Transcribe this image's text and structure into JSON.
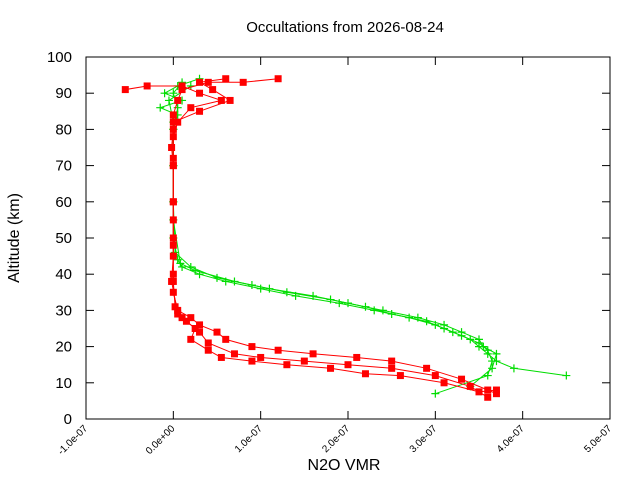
{
  "chart_data": {
    "type": "line",
    "title": "Occultations from 2026-08-24",
    "xlabel": "N2O VMR",
    "ylabel": "Altitude (km)",
    "xlim": [
      -1e-07,
      5e-07
    ],
    "ylim": [
      0,
      100
    ],
    "x_tick_labels": [
      "-1.0e-07",
      "0.0e+00",
      "1.0e-07",
      "2.0e-07",
      "3.0e-07",
      "4.0e-07",
      "5.0e-07"
    ],
    "x_ticks": [
      -1e-07,
      0,
      1e-07,
      2e-07,
      3e-07,
      4e-07,
      5e-07
    ],
    "y_tick_labels": [
      "0",
      "10",
      "20",
      "30",
      "40",
      "50",
      "60",
      "70",
      "80",
      "90",
      "100"
    ],
    "y_ticks": [
      0,
      10,
      20,
      30,
      40,
      50,
      60,
      70,
      80,
      90,
      100
    ],
    "grid": false,
    "legend": "none",
    "series": [
      {
        "color": "#00dd00",
        "marker": "plus",
        "profiles": [
          [
            [
              3e-08,
              94
            ],
            [
              5e-09,
              92
            ],
            [
              -1e-08,
              90
            ],
            [
              1e-08,
              88
            ],
            [
              -1.5e-08,
              86
            ],
            [
              5e-09,
              84
            ],
            [
              0.0,
              80
            ],
            [
              0.0,
              70
            ],
            [
              0.0,
              60
            ],
            [
              0.0,
              50
            ],
            [
              5e-09,
              44
            ],
            [
              1e-08,
              42
            ],
            [
              3e-08,
              40
            ],
            [
              6e-08,
              38
            ],
            [
              1e-07,
              36
            ],
            [
              1.4e-07,
              34
            ],
            [
              1.9e-07,
              32
            ],
            [
              2.3e-07,
              30
            ],
            [
              2.7e-07,
              28
            ],
            [
              3e-07,
              26
            ],
            [
              3.2e-07,
              24
            ],
            [
              3.4e-07,
              22
            ],
            [
              3.5e-07,
              20
            ],
            [
              3.6e-07,
              18
            ],
            [
              3.7e-07,
              16
            ],
            [
              3.9e-07,
              14
            ],
            [
              4.5e-07,
              12
            ]
          ],
          [
            [
              1e-08,
              93
            ],
            [
              0.0,
              90
            ],
            [
              5e-09,
              86
            ],
            [
              0.0,
              80
            ],
            [
              0.0,
              60
            ],
            [
              2e-09,
              46
            ],
            [
              2e-08,
              42
            ],
            [
              5e-08,
              39
            ],
            [
              9e-08,
              37
            ],
            [
              1.3e-07,
              35
            ],
            [
              1.8e-07,
              33
            ],
            [
              2.2e-07,
              31
            ],
            [
              2.5e-07,
              29
            ],
            [
              2.9e-07,
              27
            ],
            [
              3.1e-07,
              25
            ],
            [
              3.3e-07,
              23
            ],
            [
              3.5e-07,
              21
            ],
            [
              3.6e-07,
              19
            ],
            [
              3.65e-07,
              16
            ],
            [
              3.6e-07,
              12
            ],
            [
              3e-07,
              7
            ]
          ],
          [
            [
              2e-08,
              92
            ],
            [
              -5e-09,
              88
            ],
            [
              0.0,
              82
            ],
            [
              0.0,
              70
            ],
            [
              0.0,
              55
            ],
            [
              8e-09,
              43
            ],
            [
              2.5e-08,
              41
            ],
            [
              7e-08,
              38
            ],
            [
              1.1e-07,
              36
            ],
            [
              1.6e-07,
              34
            ],
            [
              2e-07,
              32
            ],
            [
              2.4e-07,
              30
            ],
            [
              2.8e-07,
              28
            ],
            [
              3.1e-07,
              26
            ],
            [
              3.3e-07,
              24
            ],
            [
              3.5e-07,
              22
            ],
            [
              3.55e-07,
              20
            ],
            [
              3.7e-07,
              18
            ],
            [
              3.65e-07,
              14
            ],
            [
              3.4e-07,
              9
            ]
          ]
        ]
      },
      {
        "color": "#ff0000",
        "marker": "square",
        "profiles": [
          [
            [
              1.2e-07,
              94
            ],
            [
              8e-08,
              93
            ],
            [
              4e-08,
              93
            ],
            [
              1e-08,
              91
            ],
            [
              5e-09,
              88
            ],
            [
              0.0,
              84
            ],
            [
              0.0,
              80
            ],
            [
              -2e-09,
              75
            ],
            [
              0.0,
              70
            ],
            [
              0.0,
              60
            ],
            [
              0.0,
              50
            ],
            [
              0.0,
              40
            ],
            [
              0.0,
              35
            ],
            [
              5e-09,
              30
            ],
            [
              2e-08,
              28
            ],
            [
              3e-08,
              26
            ],
            [
              5e-08,
              24
            ],
            [
              6e-08,
              22
            ],
            [
              9e-08,
              20
            ],
            [
              1.2e-07,
              19
            ],
            [
              1.6e-07,
              18
            ],
            [
              2.1e-07,
              17
            ],
            [
              2.5e-07,
              16
            ],
            [
              2.9e-07,
              14
            ],
            [
              3.3e-07,
              11
            ],
            [
              3.6e-07,
              8
            ],
            [
              3.7e-07,
              7
            ]
          ],
          [
            [
              -5.5e-08,
              91
            ],
            [
              -3e-08,
              92
            ],
            [
              1e-08,
              92
            ],
            [
              3e-08,
              90
            ],
            [
              5.5e-08,
              88
            ],
            [
              2e-08,
              86
            ],
            [
              5e-09,
              82
            ],
            [
              0.0,
              78
            ],
            [
              0.0,
              70
            ],
            [
              0.0,
              55
            ],
            [
              0.0,
              45
            ],
            [
              -2e-09,
              38
            ],
            [
              5e-09,
              29
            ],
            [
              1.5e-08,
              27
            ],
            [
              3e-08,
              24
            ],
            [
              4e-08,
              21
            ],
            [
              7e-08,
              18
            ],
            [
              1e-07,
              17
            ],
            [
              1.5e-07,
              16
            ],
            [
              2e-07,
              15
            ],
            [
              2.5e-07,
              14
            ],
            [
              3e-07,
              12
            ],
            [
              3.4e-07,
              9
            ],
            [
              3.6e-07,
              6
            ]
          ],
          [
            [
              6e-08,
              94
            ],
            [
              3e-08,
              93
            ],
            [
              4.5e-08,
              91
            ],
            [
              6.5e-08,
              88
            ],
            [
              3e-08,
              85
            ],
            [
              0.0,
              82
            ],
            [
              0.0,
              72
            ],
            [
              0.0,
              60
            ],
            [
              0.0,
              48
            ],
            [
              0.0,
              38
            ],
            [
              2e-09,
              31
            ],
            [
              1e-08,
              28
            ],
            [
              2.5e-08,
              25
            ],
            [
              2e-08,
              22
            ],
            [
              4e-08,
              19
            ],
            [
              5.5e-08,
              17
            ],
            [
              9e-08,
              16
            ],
            [
              1.3e-07,
              15
            ],
            [
              1.8e-07,
              14
            ],
            [
              2.2e-07,
              12.5
            ],
            [
              2.6e-07,
              12
            ],
            [
              3.1e-07,
              10
            ],
            [
              3.5e-07,
              7.5
            ],
            [
              3.7e-07,
              8
            ]
          ]
        ]
      }
    ]
  }
}
